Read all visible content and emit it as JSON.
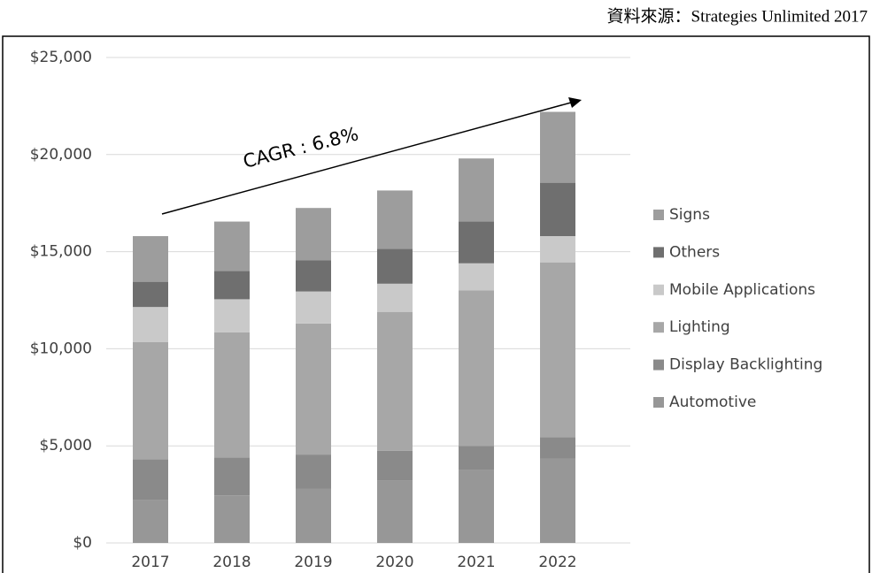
{
  "chart_data": {
    "type": "stacked_bar",
    "source": "資料來源：Strategies Unlimited 2017",
    "annotation": "CAGR : 6.8%",
    "categories": [
      "2017",
      "2018",
      "2019",
      "2020",
      "2021",
      "2022"
    ],
    "series": [
      {
        "name": "Automotive",
        "color": "#979797",
        "values": [
          2200,
          2450,
          2800,
          3200,
          3750,
          4350
        ]
      },
      {
        "name": "Display Backlighting",
        "color": "#8a8a8a",
        "values": [
          2100,
          1950,
          1750,
          1550,
          1250,
          1100
        ]
      },
      {
        "name": "Lighting",
        "color": "#a7a7a7",
        "values": [
          6050,
          6450,
          6750,
          7150,
          8000,
          9000
        ]
      },
      {
        "name": "Mobile Applications",
        "color": "#c9c9c9",
        "values": [
          1800,
          1700,
          1650,
          1450,
          1400,
          1350
        ]
      },
      {
        "name": "Others",
        "color": "#6f6f6f",
        "values": [
          1300,
          1450,
          1600,
          1800,
          2150,
          2750
        ]
      },
      {
        "name": "Signs",
        "color": "#9d9d9d",
        "values": [
          2350,
          2550,
          2700,
          3000,
          3250,
          3650
        ]
      }
    ],
    "ylim": [
      0,
      25000
    ],
    "yticks": [
      {
        "value": 0,
        "label": "$0"
      },
      {
        "value": 5000,
        "label": "$5,000"
      },
      {
        "value": 10000,
        "label": "$10,000"
      },
      {
        "value": 15000,
        "label": "$15,000"
      },
      {
        "value": 20000,
        "label": "$20,000"
      },
      {
        "value": 25000,
        "label": "$25,000"
      }
    ],
    "grid": true
  }
}
